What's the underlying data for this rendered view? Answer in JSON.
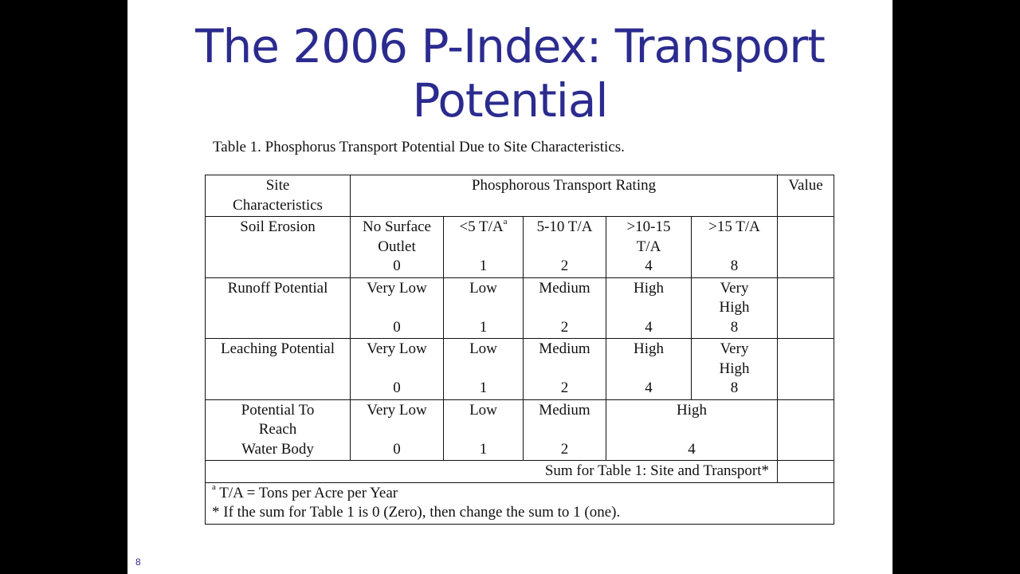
{
  "slide": {
    "title_line1": "The 2006 P-Index: Transport",
    "title_line2": "Potential",
    "page_number": "8"
  },
  "table": {
    "caption": "Table 1. Phosphorus Transport Potential Due to Site Characteristics.",
    "header": {
      "site": [
        "Site",
        "Characteristics"
      ],
      "rating": "Phosphorous Transport Rating",
      "value": "Value"
    },
    "rows": [
      {
        "label": [
          "Soil Erosion"
        ],
        "cells": [
          {
            "text": [
              "No Surface",
              "Outlet"
            ],
            "value": "0"
          },
          {
            "text": [
              "<5 T/A"
            ],
            "sup": "a",
            "value": "1"
          },
          {
            "text": [
              "5-10 T/A"
            ],
            "value": "2"
          },
          {
            "text": [
              ">10-15",
              "T/A"
            ],
            "value": "4"
          },
          {
            "text": [
              ">15 T/A"
            ],
            "value": "8"
          }
        ]
      },
      {
        "label": [
          "Runoff Potential"
        ],
        "cells": [
          {
            "text": [
              "Very Low"
            ],
            "value": "0"
          },
          {
            "text": [
              "Low"
            ],
            "value": "1"
          },
          {
            "text": [
              "Medium"
            ],
            "value": "2"
          },
          {
            "text": [
              "High"
            ],
            "value": "4"
          },
          {
            "text": [
              "Very",
              "High"
            ],
            "value": "8"
          }
        ]
      },
      {
        "label": [
          "Leaching Potential"
        ],
        "cells": [
          {
            "text": [
              "Very Low"
            ],
            "value": "0"
          },
          {
            "text": [
              "Low"
            ],
            "value": "1"
          },
          {
            "text": [
              "Medium"
            ],
            "value": "2"
          },
          {
            "text": [
              "High"
            ],
            "value": "4"
          },
          {
            "text": [
              "Very",
              "High"
            ],
            "value": "8"
          }
        ]
      },
      {
        "label": [
          "Potential To",
          "Reach",
          "Water Body"
        ],
        "cells": [
          {
            "text": [
              "Very Low"
            ],
            "value": "0"
          },
          {
            "text": [
              "Low"
            ],
            "value": "1"
          },
          {
            "text": [
              "Medium"
            ],
            "value": "2"
          },
          {
            "text": [
              "High"
            ],
            "value": "4"
          }
        ]
      }
    ],
    "sum_label": "Sum for Table 1: Site and Transport*",
    "footnotes": {
      "a_marker": "a",
      "a_text": " T/A = Tons per Acre per Year",
      "star_text": "* If the sum for Table 1 is 0 (Zero), then change the sum to 1 (one)."
    }
  }
}
